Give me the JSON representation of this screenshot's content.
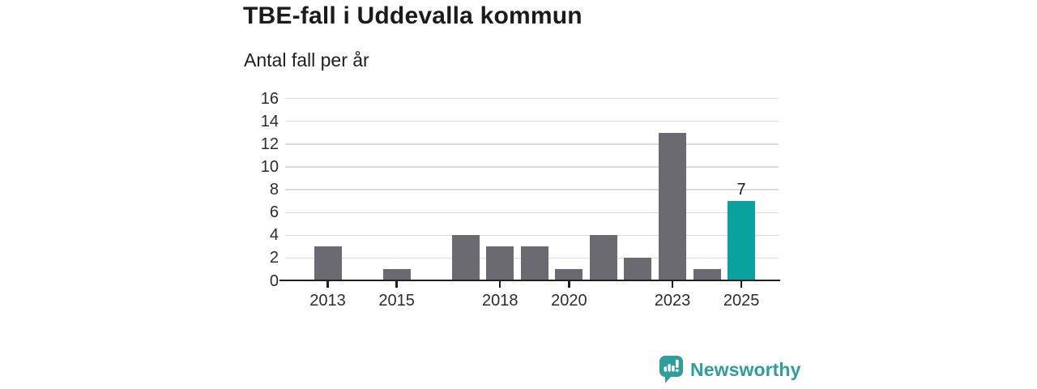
{
  "header": {
    "title": "TBE-fall i Uddevalla kommun",
    "subtitle": "Antal fall per år"
  },
  "chart_data": {
    "type": "bar",
    "title": "TBE-fall i Uddevalla kommun",
    "subtitle": "Antal fall per år",
    "ylabel": "Antal fall per år",
    "xlabel": "",
    "categories": [
      2013,
      2014,
      2015,
      2016,
      2017,
      2018,
      2019,
      2020,
      2021,
      2022,
      2023,
      2024,
      2025
    ],
    "values": [
      3,
      0,
      1,
      0,
      4,
      3,
      3,
      1,
      4,
      2,
      13,
      1,
      7
    ],
    "highlight_category": 2025,
    "highlight_value_label": "7",
    "ylim": [
      0,
      16
    ],
    "y_ticks": [
      0,
      2,
      4,
      6,
      8,
      10,
      12,
      14,
      16
    ],
    "x_tick_labels": [
      2013,
      2015,
      2018,
      2020,
      2023,
      2025
    ],
    "grid": true,
    "legend": "none",
    "colors": {
      "bar": "#6b6a70",
      "highlight": "#0aa29e",
      "gridline": "#dadada",
      "axis": "#1f1f1f",
      "tick_label": "#2c2c2c",
      "value_label": "#1b1b1b"
    }
  },
  "footer": {
    "brand": "Newsworthy",
    "brand_color": "#2d9e99",
    "brand_icon": "newsworthy-speech-bubble-bar-chart-icon"
  }
}
